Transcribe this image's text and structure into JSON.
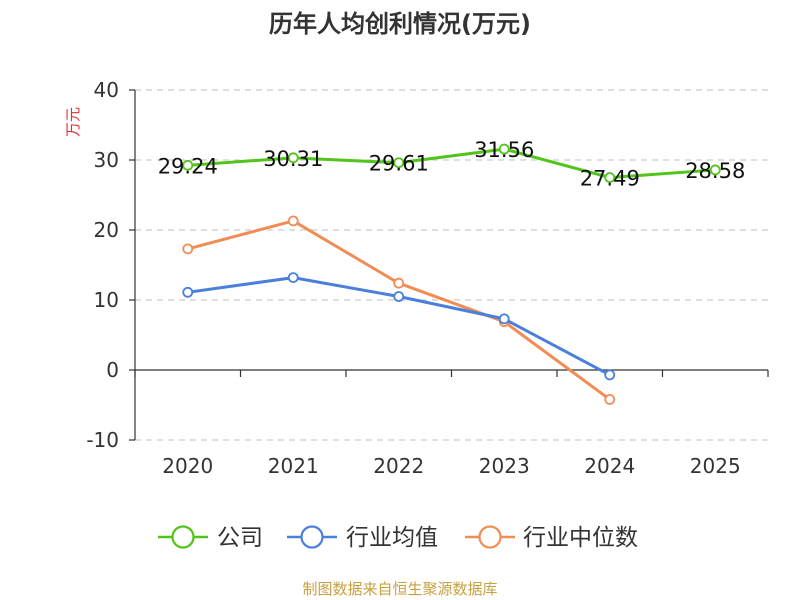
{
  "chart_data": {
    "type": "line",
    "title": "历年人均创利情况(万元)",
    "ylabel": "万元",
    "xlabel": "",
    "categories": [
      "2020",
      "2021",
      "2022",
      "2023",
      "2024",
      "2025"
    ],
    "ylim": [
      -10,
      40
    ],
    "yticks": [
      "40",
      "30",
      "20",
      "10",
      "0",
      "-10"
    ],
    "yticks_values": [
      40,
      30,
      20,
      10,
      0,
      -10
    ],
    "grid": true,
    "legend_position": "bottom",
    "series": [
      {
        "name": "公司",
        "color": "#52c41a",
        "values": [
          29.24,
          30.31,
          29.61,
          31.56,
          27.49,
          28.58
        ],
        "labels": [
          "29.24",
          "30.31",
          "29.61",
          "31.56",
          "27.49",
          "28.58"
        ]
      },
      {
        "name": "行业均值",
        "color": "#4a7fdb",
        "values": [
          11.1,
          13.2,
          10.5,
          7.3,
          -0.7,
          null
        ]
      },
      {
        "name": "行业中位数",
        "color": "#f28c55",
        "values": [
          17.3,
          21.3,
          12.4,
          6.9,
          -4.2,
          null
        ]
      }
    ]
  },
  "source": "制图数据来自恒生聚源数据库",
  "colors": {
    "axis": "#333333",
    "grid": "#cccccc",
    "unit": "#e03030",
    "source": "#c8a040"
  }
}
